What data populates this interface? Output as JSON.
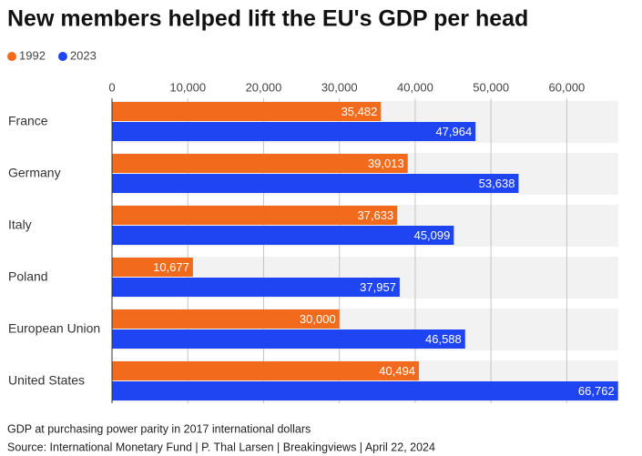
{
  "chart_data": {
    "type": "bar",
    "orientation": "horizontal",
    "title": "New members helped lift the EU's GDP per head",
    "categories": [
      "France",
      "Germany",
      "Italy",
      "Poland",
      "European Union",
      "United States"
    ],
    "series": [
      {
        "name": "1992",
        "color": "#f26a1b",
        "values": [
          35482,
          39013,
          37633,
          10677,
          30000,
          40494
        ],
        "value_labels": [
          "35,482",
          "39,013",
          "37,633",
          "10,677",
          "30,000",
          "40,494"
        ]
      },
      {
        "name": "2023",
        "color": "#1f45f2",
        "values": [
          47964,
          53638,
          45099,
          37957,
          46588,
          66762
        ],
        "value_labels": [
          "47,964",
          "53,638",
          "45,099",
          "37,957",
          "46,588",
          "66,762"
        ]
      }
    ],
    "xlim": [
      0,
      66800
    ],
    "xticks": [
      0,
      {
        "value": 10000,
        "label": "10,000"
      },
      {
        "value": 20000,
        "label": "20,000"
      },
      {
        "value": 30000,
        "label": "30,000"
      },
      {
        "value": 40000,
        "label": "40,000"
      },
      {
        "value": 50000,
        "label": "50,000"
      },
      {
        "value": 60000,
        "label": "60,000"
      }
    ],
    "grid": true,
    "notes": [
      "GDP at purchasing power parity in 2017 international dollars",
      "Source: International Monetary Fund | P. Thal Larsen | Breakingviews | April 22, 2024"
    ]
  }
}
